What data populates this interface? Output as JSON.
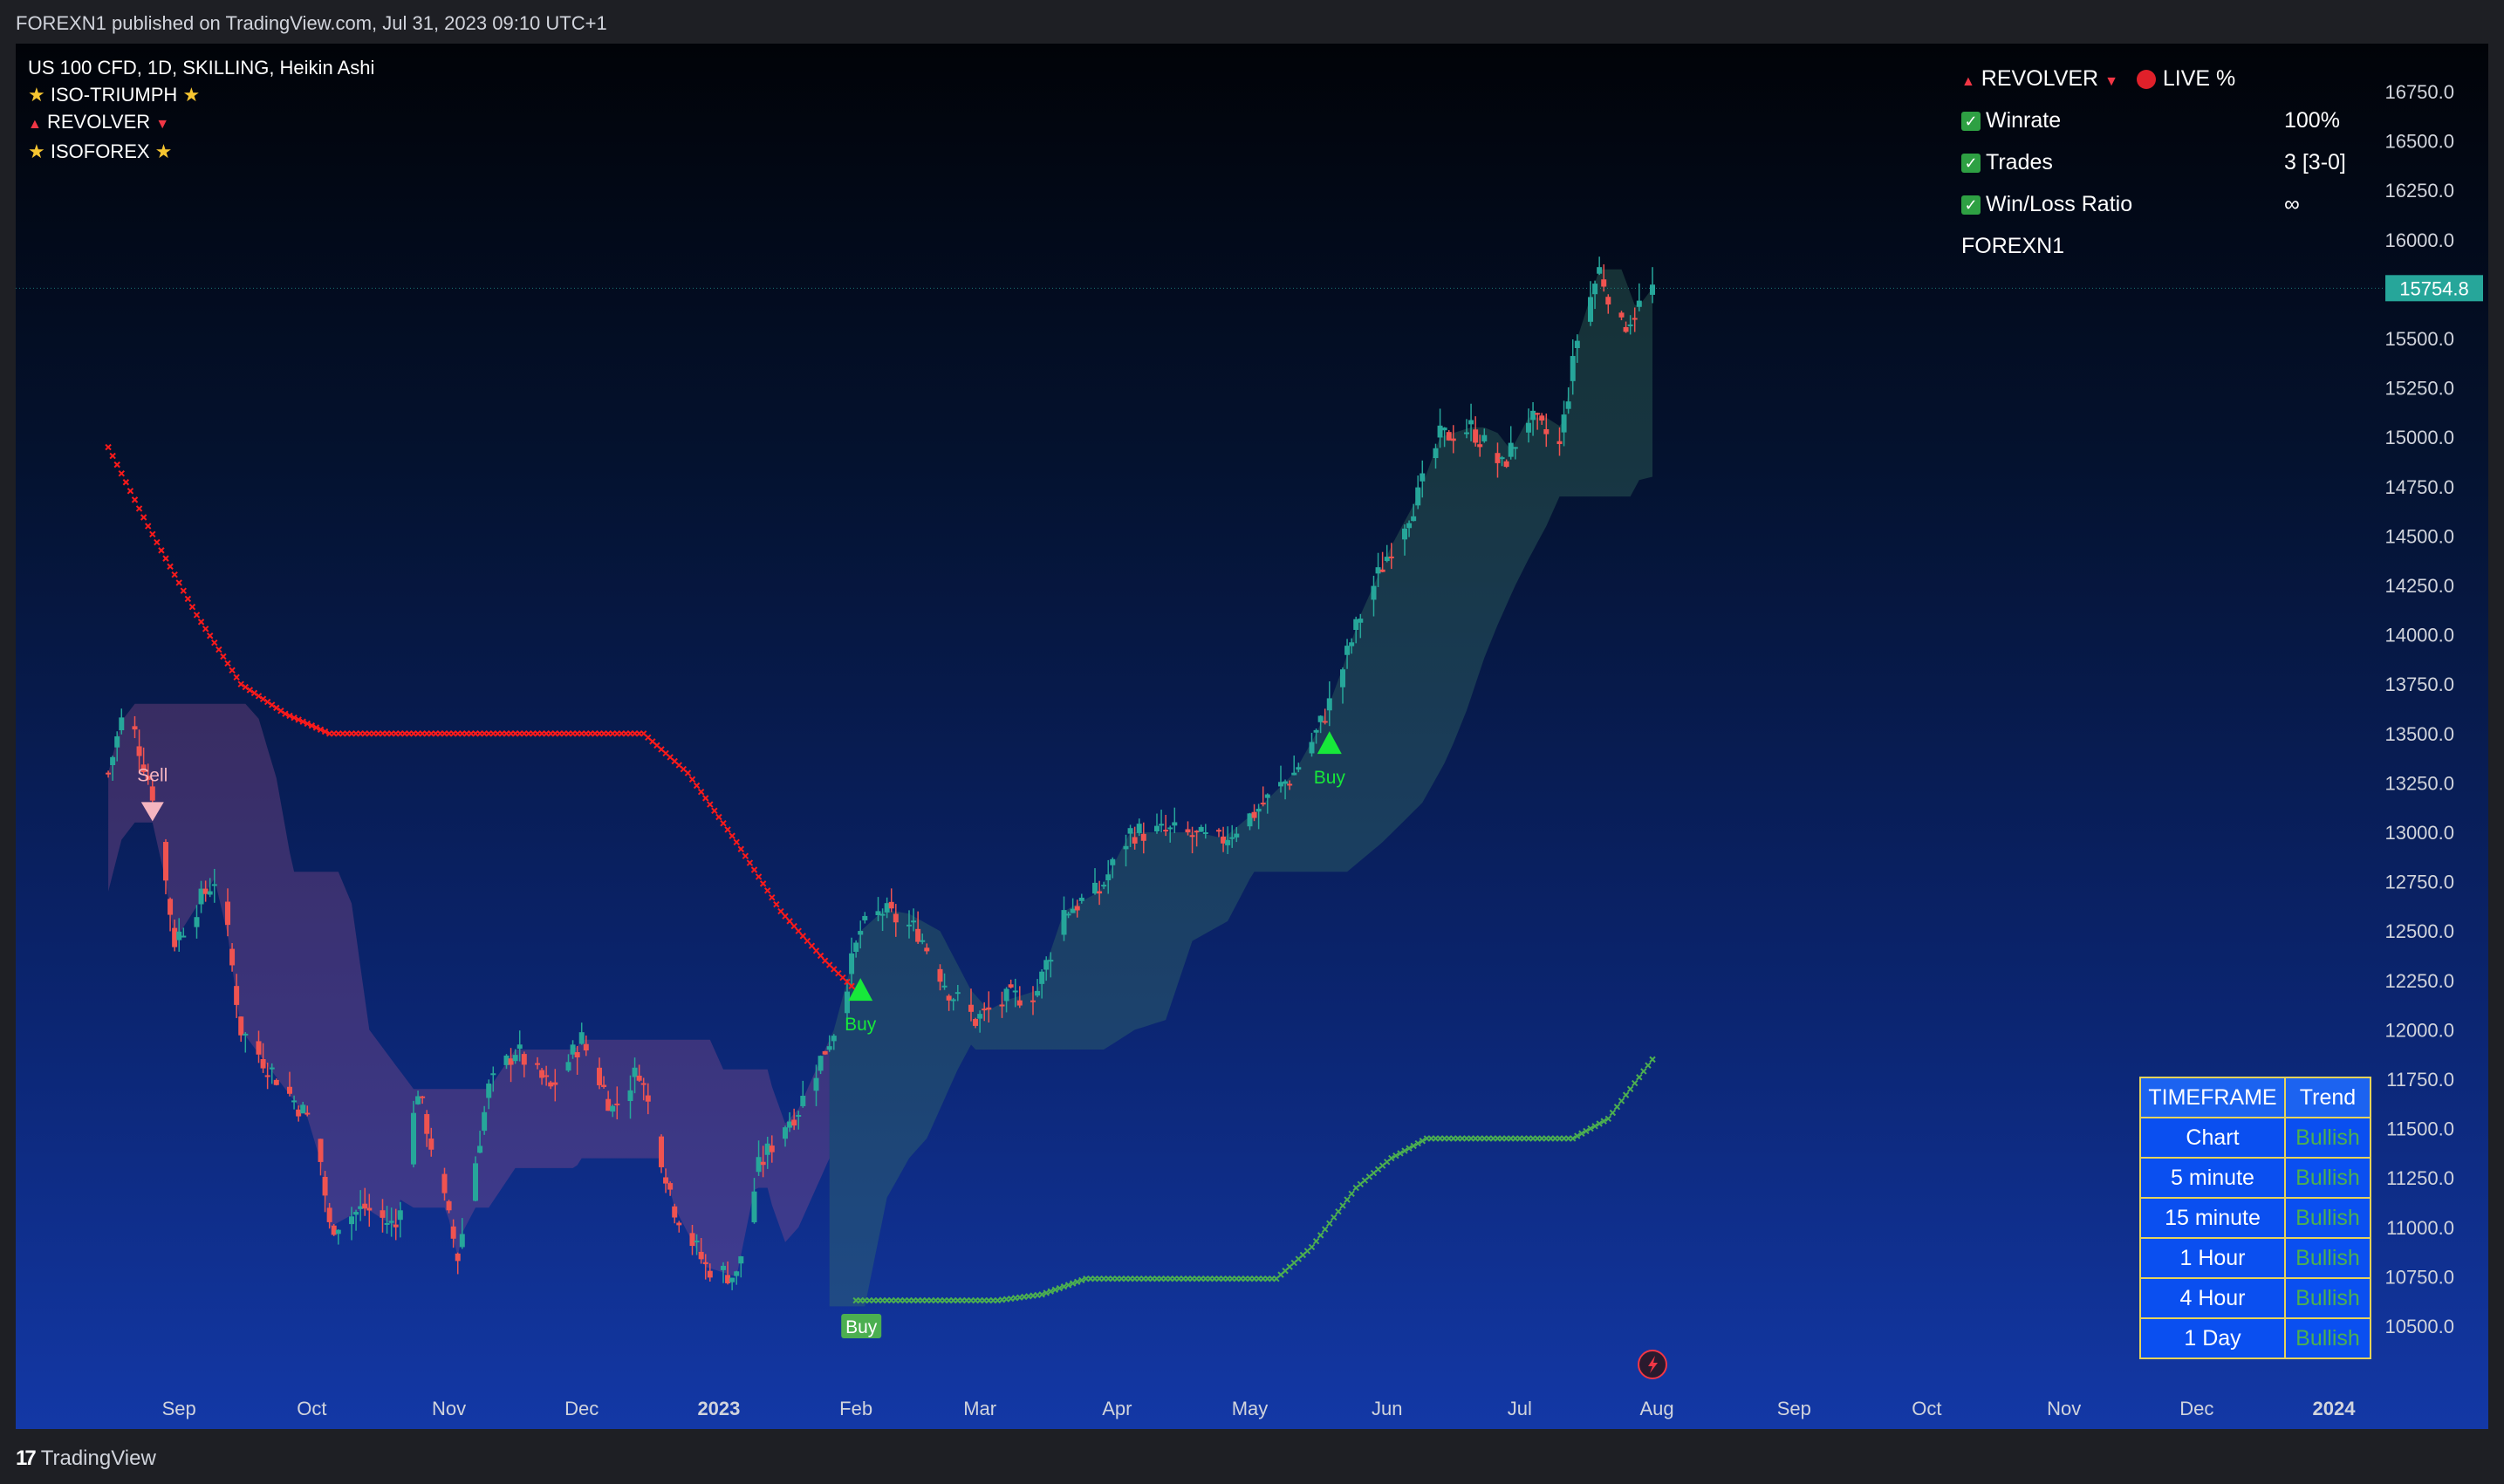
{
  "header": {
    "published": "FOREXN1 published on TradingView.com, Jul 31, 2023 09:10 UTC+1"
  },
  "legend": {
    "symbol": "US 100 CFD, 1D, SKILLING, Heikin Ashi",
    "ind1": "ISO-TRIUMPH",
    "ind2": "REVOLVER",
    "ind3": "ISOFOREX"
  },
  "stats": {
    "title": "REVOLVER",
    "live": "LIVE %",
    "rows": [
      {
        "label": "Winrate",
        "value": "100%"
      },
      {
        "label": "Trades",
        "value": "3 [3-0]"
      },
      {
        "label": "Win/Loss Ratio",
        "value": "∞"
      }
    ],
    "author": "FOREXN1"
  },
  "table": {
    "header": [
      "TIMEFRAME",
      "Trend"
    ],
    "rows": [
      [
        "Chart",
        "Bullish"
      ],
      [
        "5 minute",
        "Bullish"
      ],
      [
        "15 minute",
        "Bullish"
      ],
      [
        "1 Hour",
        "Bullish"
      ],
      [
        "4 Hour",
        "Bullish"
      ],
      [
        "1 Day",
        "Bullish"
      ]
    ]
  },
  "footer": {
    "brand": "TradingView"
  },
  "colors": {
    "bull": "#26a69a",
    "bear": "#ef5350",
    "resistance": "#ff1a1a",
    "support": "#4caf50",
    "price_badge": "#26a69a"
  },
  "chart_data": {
    "type": "candlestick",
    "title": "US 100 CFD, 1D, SKILLING, Heikin Ashi",
    "last_price": "15754.8",
    "ylim": [
      10250,
      17000
    ],
    "y_ticks": [
      "16750.0",
      "16500.0",
      "16250.0",
      "16000.0",
      "15750.0",
      "15500.0",
      "15250.0",
      "15000.0",
      "14750.0",
      "14500.0",
      "14250.0",
      "14000.0",
      "13750.0",
      "13500.0",
      "13250.0",
      "13000.0",
      "12750.0",
      "12500.0",
      "12250.0",
      "12000.0",
      "11750.0",
      "11500.0",
      "11250.0",
      "11000.0",
      "10750.0",
      "10500.0"
    ],
    "x_labels": [
      "Sep",
      "Oct",
      "Nov",
      "Dec",
      "2023",
      "Feb",
      "Mar",
      "Apr",
      "May",
      "Jun",
      "Jul",
      "Aug",
      "Sep",
      "Oct",
      "Nov",
      "Dec",
      "2024"
    ],
    "x_label_bold": [
      "2023",
      "2024"
    ],
    "close_path": [
      [
        "2022-08-16",
        13300
      ],
      [
        "2022-08-20",
        13650
      ],
      [
        "2022-08-26",
        13200
      ],
      [
        "2022-08-31",
        12450
      ],
      [
        "2022-09-10",
        12800
      ],
      [
        "2022-09-15",
        12000
      ],
      [
        "2022-09-25",
        11700
      ],
      [
        "2022-10-02",
        11500
      ],
      [
        "2022-10-05",
        11000
      ],
      [
        "2022-10-13",
        11100
      ],
      [
        "2022-10-20",
        11000
      ],
      [
        "2022-10-25",
        11700
      ],
      [
        "2022-11-03",
        10850
      ],
      [
        "2022-11-10",
        11700
      ],
      [
        "2022-11-16",
        11900
      ],
      [
        "2022-11-24",
        11700
      ],
      [
        "2022-12-01",
        11950
      ],
      [
        "2022-12-08",
        11600
      ],
      [
        "2022-12-14",
        11800
      ],
      [
        "2022-12-22",
        11100
      ],
      [
        "2022-12-29",
        10800
      ],
      [
        "2023-01-05",
        10750
      ],
      [
        "2023-01-10",
        11300
      ],
      [
        "2023-01-15",
        11500
      ],
      [
        "2023-01-19",
        11600
      ],
      [
        "2023-01-27",
        12000
      ],
      [
        "2023-02-02",
        12500
      ],
      [
        "2023-02-07",
        12600
      ],
      [
        "2023-02-15",
        12500
      ],
      [
        "2023-02-22",
        12200
      ],
      [
        "2023-02-28",
        12050
      ],
      [
        "2023-03-07",
        12150
      ],
      [
        "2023-03-14",
        12200
      ],
      [
        "2023-03-20",
        12600
      ],
      [
        "2023-03-28",
        12700
      ],
      [
        "2023-04-04",
        13000
      ],
      [
        "2023-04-14",
        13000
      ],
      [
        "2023-04-24",
        12950
      ],
      [
        "2023-05-02",
        13100
      ],
      [
        "2023-05-11",
        13300
      ],
      [
        "2023-05-16",
        13500
      ],
      [
        "2023-05-20",
        13700
      ],
      [
        "2023-05-26",
        14100
      ],
      [
        "2023-06-02",
        14450
      ],
      [
        "2023-06-08",
        14700
      ],
      [
        "2023-06-13",
        15000
      ],
      [
        "2023-06-20",
        15050
      ],
      [
        "2023-06-27",
        14850
      ],
      [
        "2023-07-03",
        15100
      ],
      [
        "2023-07-10",
        14950
      ],
      [
        "2023-07-14",
        15500
      ],
      [
        "2023-07-19",
        15850
      ],
      [
        "2023-07-24",
        15550
      ],
      [
        "2023-07-31",
        15754.8
      ]
    ],
    "resistance_line": [
      [
        "2022-08-16",
        14950
      ],
      [
        "2022-08-25",
        14550
      ],
      [
        "2022-09-05",
        14100
      ],
      [
        "2022-09-15",
        13750
      ],
      [
        "2022-09-25",
        13600
      ],
      [
        "2022-10-05",
        13500
      ],
      [
        "2022-12-15",
        13500
      ],
      [
        "2022-12-25",
        13300
      ],
      [
        "2023-01-05",
        12950
      ],
      [
        "2023-01-15",
        12600
      ],
      [
        "2023-01-25",
        12350
      ],
      [
        "2023-02-01",
        12200
      ]
    ],
    "support_line": [
      [
        "2023-02-01",
        10630
      ],
      [
        "2023-03-05",
        10630
      ],
      [
        "2023-03-15",
        10660
      ],
      [
        "2023-03-25",
        10740
      ],
      [
        "2023-05-07",
        10740
      ],
      [
        "2023-05-15",
        10900
      ],
      [
        "2023-05-25",
        11200
      ],
      [
        "2023-06-02",
        11350
      ],
      [
        "2023-06-10",
        11450
      ],
      [
        "2023-07-13",
        11450
      ],
      [
        "2023-07-21",
        11550
      ],
      [
        "2023-07-31",
        11850
      ]
    ],
    "signals": [
      {
        "type": "sell",
        "date": "2022-08-26",
        "price": 13100,
        "label": "Sell"
      },
      {
        "type": "buy",
        "date": "2023-02-02",
        "price": 12200,
        "label": "Buy"
      },
      {
        "type": "buy",
        "date": "2023-05-19",
        "price": 13450,
        "label": "Buy"
      },
      {
        "type": "buy_tag",
        "date": "2023-02-02",
        "price": 10500,
        "label": "Buy"
      }
    ]
  }
}
